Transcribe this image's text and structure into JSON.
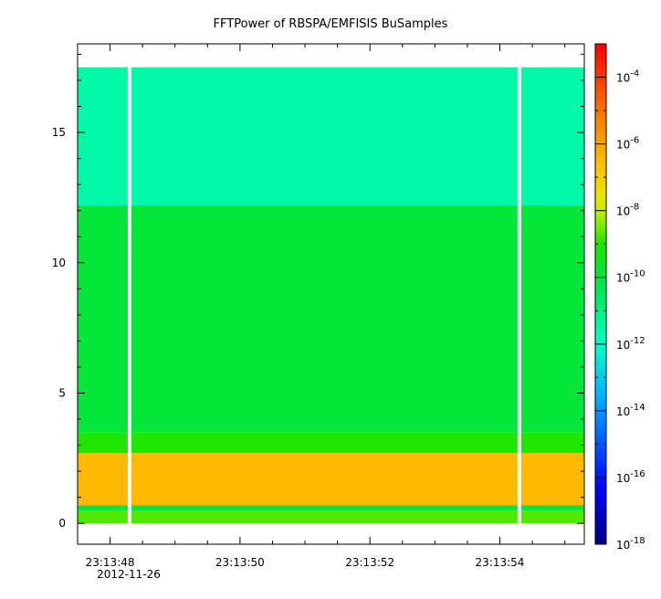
{
  "chart_data": {
    "type": "heatmap",
    "title": "FFTPower of RBSPA/EMFISIS  BuSamples",
    "xlabel": "",
    "ylabel": "",
    "x_ticks": [
      "23:13:48",
      "23:13:50",
      "23:13:52",
      "23:13:54"
    ],
    "x_date_label": "2012-11-26",
    "xlim": [
      "23:13:47.5",
      "23:13:55.3"
    ],
    "y_ticks": [
      0,
      5,
      10,
      15
    ],
    "ylim": [
      -0.8,
      18.4
    ],
    "data_ylim": [
      0,
      17.5
    ],
    "data_gaps": [
      "23:13:48.3",
      "23:13:54.3"
    ],
    "colorbar": {
      "scale": "log",
      "range": [
        1e-18,
        0.001
      ],
      "tick_values": [
        0.0001,
        1e-06,
        1e-08,
        1e-10,
        1e-12,
        1e-14,
        1e-16,
        1e-18
      ],
      "tick_labels": [
        {
          "base": "10",
          "exp": "-4"
        },
        {
          "base": "10",
          "exp": "-6"
        },
        {
          "base": "10",
          "exp": "-8"
        },
        {
          "base": "10",
          "exp": "-10"
        },
        {
          "base": "10",
          "exp": "-12"
        },
        {
          "base": "10",
          "exp": "-14"
        },
        {
          "base": "10",
          "exp": "-16"
        },
        {
          "base": "10",
          "exp": "-18"
        }
      ]
    },
    "bands": [
      {
        "y_range": [
          0,
          0.5
        ],
        "power": 2e-09
      },
      {
        "y_range": [
          0.5,
          0.7
        ],
        "power": 1e-10
      },
      {
        "y_range": [
          0.7,
          2.7
        ],
        "power": 3e-07
      },
      {
        "y_range": [
          2.7,
          3.5
        ],
        "power": 1e-09
      },
      {
        "y_range": [
          3.5,
          12.2
        ],
        "power": 1e-10
      },
      {
        "y_range": [
          12.2,
          17.5
        ],
        "power": 3e-12
      }
    ]
  }
}
